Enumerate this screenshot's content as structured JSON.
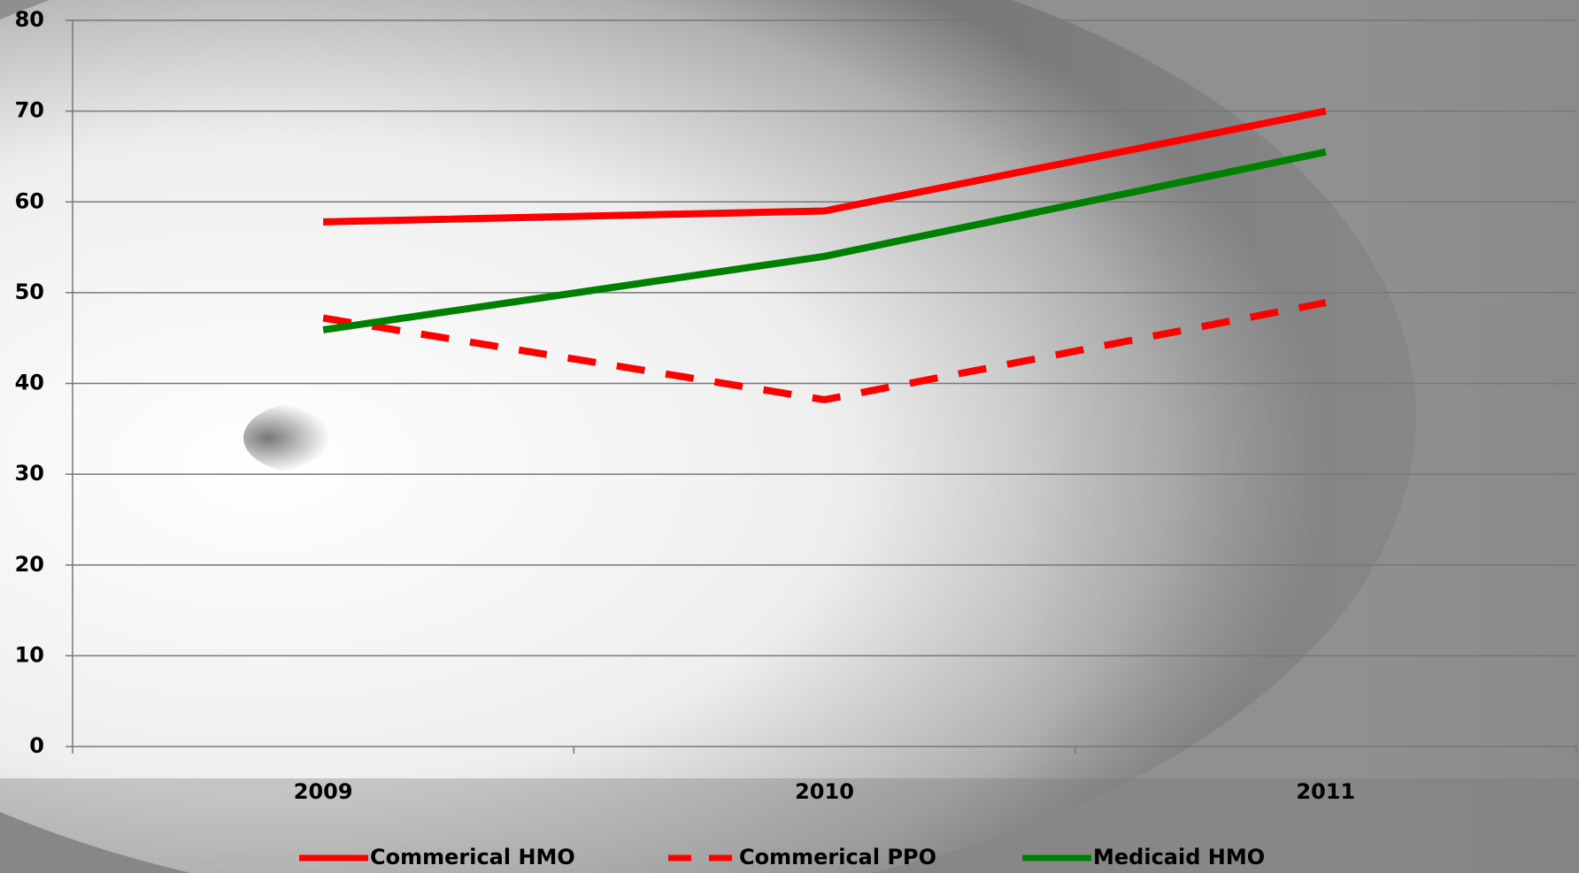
{
  "chart_data": {
    "type": "line",
    "categories": [
      "2009",
      "2010",
      "2011"
    ],
    "series": [
      {
        "name": "Commerical HMO",
        "color": "#ff0000",
        "style": "solid",
        "values": [
          57.8,
          59,
          70
        ]
      },
      {
        "name": "Commerical PPO",
        "color": "#ff0000",
        "style": "dashed",
        "values": [
          47.2,
          38.2,
          48.9
        ]
      },
      {
        "name": "Medicaid HMO",
        "color": "#008000",
        "style": "solid",
        "values": [
          45.9,
          54,
          65.5
        ]
      }
    ],
    "ylim": [
      0,
      80
    ],
    "yticks": [
      0,
      10,
      20,
      30,
      40,
      50,
      60,
      70,
      80
    ],
    "grid": true,
    "legend": "bottom"
  }
}
